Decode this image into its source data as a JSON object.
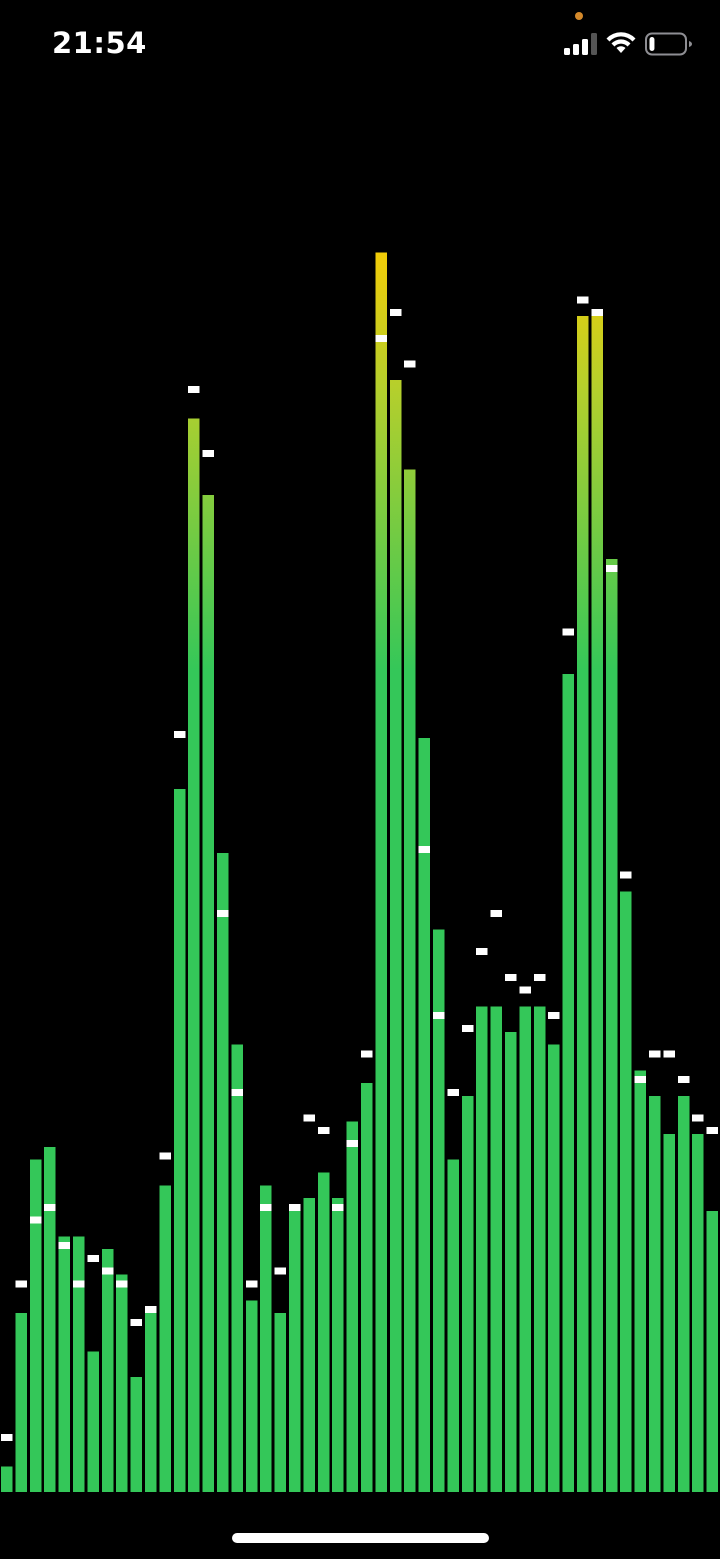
{
  "status_bar": {
    "time": "21:54",
    "mic_indicator_color": "#d4892a",
    "signal_icon": "cellular-signal-icon",
    "wifi_icon": "wifi-icon",
    "battery_icon": "battery-icon",
    "battery_level": 0.15
  },
  "spectrum": {
    "bar_color_low": "#34c759",
    "bar_color_mid": "#ffcc00",
    "bar_color_high": "#ff8c00",
    "peak_color": "#ffffff",
    "levels": [
      0.02,
      0.14,
      0.26,
      0.27,
      0.2,
      0.2,
      0.11,
      0.19,
      0.17,
      0.09,
      0.14,
      0.24,
      0.55,
      0.84,
      0.78,
      0.5,
      0.35,
      0.15,
      0.24,
      0.14,
      0.22,
      0.23,
      0.25,
      0.23,
      0.29,
      0.32,
      0.97,
      0.87,
      0.8,
      0.59,
      0.44,
      0.26,
      0.31,
      0.38,
      0.38,
      0.36,
      0.38,
      0.38,
      0.35,
      0.64,
      0.92,
      0.92,
      0.73,
      0.47,
      0.33,
      0.31,
      0.28,
      0.31,
      0.28,
      0.22
    ],
    "peaks": [
      0.04,
      0.16,
      0.21,
      0.22,
      0.19,
      0.16,
      0.18,
      0.17,
      0.16,
      0.13,
      0.14,
      0.26,
      0.59,
      0.86,
      0.81,
      0.45,
      0.31,
      0.16,
      0.22,
      0.17,
      0.22,
      0.29,
      0.28,
      0.22,
      0.27,
      0.34,
      0.9,
      0.92,
      0.88,
      0.5,
      0.37,
      0.31,
      0.36,
      0.42,
      0.45,
      0.4,
      0.39,
      0.4,
      0.37,
      0.67,
      0.93,
      0.92,
      0.72,
      0.48,
      0.32,
      0.34,
      0.34,
      0.32,
      0.29,
      0.28
    ]
  }
}
